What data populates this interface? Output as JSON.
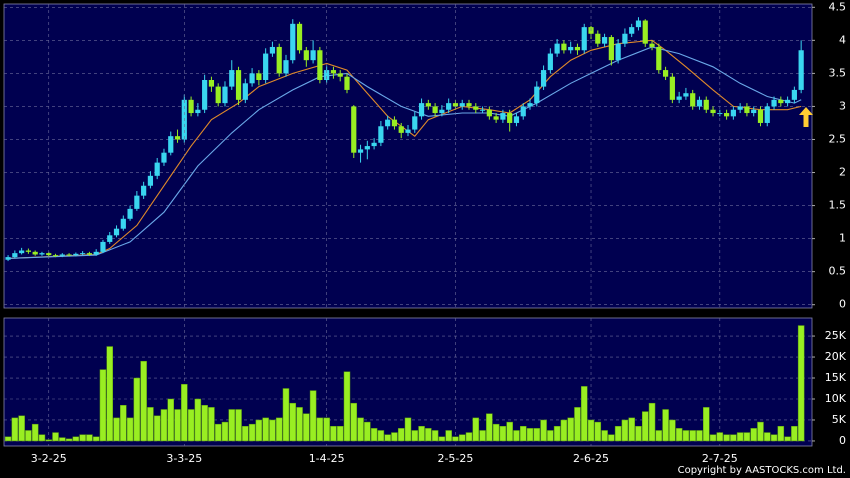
{
  "chart_data": [
    {
      "type": "candlestick",
      "up_color": "#3ad6f0",
      "down_color": "#99ee22",
      "background": "#000050",
      "xlim": [
        -0.6,
        118.6
      ],
      "ylim": [
        -0.05,
        4.55
      ],
      "yticks": [
        0,
        0.5,
        1,
        1.5,
        2,
        2.5,
        3,
        3.5,
        4,
        4.5
      ],
      "grid": true,
      "open": [
        0.68,
        0.72,
        0.78,
        0.82,
        0.8,
        0.76,
        0.78,
        0.75,
        0.74,
        0.76,
        0.75,
        0.77,
        0.78,
        0.76,
        0.8,
        0.95,
        1.05,
        1.15,
        1.3,
        1.45,
        1.65,
        1.8,
        1.95,
        2.15,
        2.3,
        2.55,
        2.5,
        3.1,
        2.9,
        2.95,
        3.4,
        3.3,
        3.05,
        3.3,
        3.55,
        3.1,
        3.35,
        3.5,
        3.4,
        3.8,
        3.9,
        3.5,
        3.7,
        4.25,
        3.85,
        3.7,
        3.85,
        3.4,
        3.55,
        3.5,
        3.45,
        3.0,
        2.3,
        2.35,
        2.4,
        2.45,
        2.7,
        2.8,
        2.7,
        2.6,
        2.65,
        2.85,
        3.05,
        3.0,
        2.9,
        2.95,
        3.05,
        3.0,
        3.05,
        3.0,
        2.95,
        2.95,
        2.85,
        2.8,
        2.9,
        2.75,
        2.85,
        3.0,
        3.05,
        3.3,
        3.55,
        3.8,
        3.95,
        3.85,
        3.9,
        3.85,
        4.2,
        4.1,
        3.95,
        4.05,
        3.7,
        3.95,
        4.1,
        4.2,
        4.3,
        3.95,
        3.9,
        3.55,
        3.45,
        3.1,
        3.15,
        3.2,
        3.0,
        3.1,
        2.95,
        2.9,
        2.9,
        2.85,
        2.95,
        3.0,
        2.9,
        2.95,
        2.75,
        3.0,
        3.1,
        3.05,
        3.1,
        3.25
      ],
      "high": [
        0.75,
        0.82,
        0.86,
        0.85,
        0.82,
        0.8,
        0.8,
        0.77,
        0.78,
        0.78,
        0.79,
        0.81,
        0.8,
        0.84,
        0.98,
        1.1,
        1.2,
        1.35,
        1.5,
        1.72,
        1.86,
        2.02,
        2.22,
        2.36,
        2.62,
        2.65,
        3.18,
        3.15,
        3.05,
        3.48,
        3.45,
        3.35,
        3.38,
        3.7,
        3.6,
        3.42,
        3.58,
        3.55,
        3.88,
        3.98,
        3.95,
        3.78,
        4.32,
        4.28,
        3.9,
        4.0,
        3.9,
        3.62,
        3.6,
        3.55,
        3.5,
        3.02,
        2.42,
        2.48,
        2.52,
        2.78,
        2.86,
        2.85,
        2.75,
        2.72,
        2.92,
        3.12,
        3.1,
        3.05,
        3.02,
        3.12,
        3.1,
        3.1,
        3.1,
        3.05,
        3.0,
        3.0,
        2.9,
        2.95,
        2.95,
        2.9,
        3.05,
        3.12,
        3.38,
        3.62,
        3.88,
        4.02,
        4.0,
        3.98,
        3.95,
        4.25,
        4.22,
        4.15,
        4.1,
        4.08,
        4.02,
        4.18,
        4.25,
        4.35,
        4.32,
        4.0,
        3.95,
        3.6,
        3.5,
        3.22,
        3.28,
        3.25,
        3.15,
        3.15,
        3.0,
        2.95,
        2.95,
        3.0,
        3.05,
        3.05,
        3.0,
        3.0,
        3.05,
        3.15,
        3.15,
        3.15,
        3.3,
        4.0
      ],
      "low": [
        0.66,
        0.7,
        0.76,
        0.77,
        0.74,
        0.74,
        0.73,
        0.72,
        0.72,
        0.73,
        0.73,
        0.75,
        0.74,
        0.74,
        0.78,
        0.92,
        1.02,
        1.12,
        1.27,
        1.42,
        1.6,
        1.76,
        1.9,
        2.1,
        2.26,
        2.45,
        2.45,
        2.85,
        2.85,
        2.9,
        3.22,
        3.0,
        3.0,
        3.25,
        3.02,
        3.05,
        3.3,
        3.32,
        3.35,
        3.75,
        3.45,
        3.45,
        3.65,
        3.8,
        3.6,
        3.65,
        3.35,
        3.35,
        3.42,
        3.38,
        3.2,
        2.22,
        2.15,
        2.2,
        2.35,
        2.4,
        2.65,
        2.65,
        2.52,
        2.55,
        2.6,
        2.8,
        2.95,
        2.85,
        2.85,
        2.9,
        2.95,
        2.95,
        2.95,
        2.9,
        2.9,
        2.8,
        2.75,
        2.75,
        2.62,
        2.7,
        2.8,
        2.95,
        3.0,
        3.25,
        3.5,
        3.75,
        3.8,
        3.8,
        3.78,
        3.8,
        4.02,
        3.9,
        3.9,
        3.62,
        3.65,
        3.9,
        4.05,
        4.15,
        3.9,
        3.85,
        3.5,
        3.4,
        3.05,
        3.05,
        3.1,
        2.95,
        2.95,
        2.9,
        2.85,
        2.85,
        2.8,
        2.8,
        2.9,
        2.85,
        2.85,
        2.7,
        2.7,
        2.95,
        3.0,
        3.0,
        3.05,
        3.2
      ],
      "close": [
        0.72,
        0.78,
        0.82,
        0.8,
        0.76,
        0.78,
        0.75,
        0.74,
        0.76,
        0.75,
        0.77,
        0.78,
        0.76,
        0.8,
        0.95,
        1.05,
        1.15,
        1.3,
        1.45,
        1.65,
        1.8,
        1.95,
        2.15,
        2.3,
        2.55,
        2.5,
        3.1,
        2.9,
        2.95,
        3.4,
        3.3,
        3.05,
        3.3,
        3.55,
        3.1,
        3.35,
        3.5,
        3.4,
        3.8,
        3.9,
        3.5,
        3.7,
        4.25,
        3.85,
        3.7,
        3.85,
        3.4,
        3.55,
        3.5,
        3.45,
        3.25,
        2.3,
        2.35,
        2.4,
        2.45,
        2.7,
        2.8,
        2.7,
        2.6,
        2.65,
        2.85,
        3.05,
        3.0,
        2.9,
        2.95,
        3.05,
        3.0,
        3.05,
        3.0,
        2.95,
        2.95,
        2.85,
        2.8,
        2.9,
        2.75,
        2.85,
        3.0,
        3.05,
        3.3,
        3.55,
        3.8,
        3.95,
        3.85,
        3.9,
        3.85,
        4.2,
        4.1,
        3.95,
        4.05,
        3.7,
        3.95,
        4.1,
        4.2,
        4.3,
        3.95,
        3.9,
        3.55,
        3.45,
        3.1,
        3.15,
        3.2,
        3.0,
        3.1,
        2.95,
        2.9,
        2.9,
        2.85,
        2.95,
        3.0,
        2.9,
        2.95,
        2.75,
        3.0,
        3.1,
        3.05,
        3.1,
        3.25,
        3.85
      ],
      "lines": [
        {
          "color": "#e08a2a",
          "x": [
            0,
            13,
            15,
            19,
            23,
            27,
            30,
            34,
            37,
            42,
            47,
            50,
            53,
            56,
            60,
            62,
            67,
            71,
            74,
            77,
            80,
            83,
            86,
            90,
            95,
            97,
            100,
            104,
            107,
            111,
            115,
            117
          ],
          "values": [
            0.7,
            0.76,
            0.85,
            1.2,
            1.8,
            2.4,
            2.8,
            3.05,
            3.3,
            3.5,
            3.65,
            3.55,
            3.2,
            2.85,
            2.55,
            2.8,
            3.0,
            2.95,
            2.9,
            3.1,
            3.45,
            3.7,
            3.85,
            3.95,
            4.0,
            3.85,
            3.6,
            3.25,
            3.0,
            2.95,
            2.95,
            3.0
          ]
        },
        {
          "color": "#6aa8e8",
          "x": [
            0,
            13,
            18,
            23,
            28,
            33,
            37,
            42,
            46,
            50,
            53,
            58,
            62,
            67,
            71,
            74,
            78,
            83,
            86,
            90,
            95,
            99,
            104,
            108,
            112,
            116,
            117
          ],
          "values": [
            0.7,
            0.75,
            0.95,
            1.4,
            2.1,
            2.6,
            2.95,
            3.25,
            3.45,
            3.5,
            3.3,
            3.0,
            2.85,
            2.9,
            2.9,
            2.85,
            3.05,
            3.35,
            3.5,
            3.7,
            3.9,
            3.8,
            3.6,
            3.35,
            3.15,
            3.05,
            3.1
          ]
        }
      ]
    },
    {
      "type": "bar",
      "color": "#99ee22",
      "background": "#000050",
      "xlim": [
        -0.6,
        118.6
      ],
      "ylim": [
        -1200,
        29300
      ],
      "grid": true,
      "yticks": [
        0,
        {
          "value": 5000,
          "label": "5K"
        },
        {
          "value": 10000,
          "label": "10K"
        },
        {
          "value": 15000,
          "label": "15K"
        },
        {
          "value": 20000,
          "label": "20K"
        },
        {
          "value": 25000,
          "label": "25K"
        }
      ],
      "xticks": [
        {
          "value": 6,
          "label": "3-2-25"
        },
        {
          "value": 26,
          "label": "3-3-25"
        },
        {
          "value": 47,
          "label": "1-4-25"
        },
        {
          "value": 66,
          "label": "2-5-25"
        },
        {
          "value": 86,
          "label": "2-6-25"
        },
        {
          "value": 105,
          "label": "2-7-25"
        }
      ],
      "values": [
        1000,
        5500,
        6000,
        2500,
        4000,
        1500,
        300,
        2000,
        800,
        500,
        1000,
        1500,
        1500,
        1000,
        17000,
        22500,
        5500,
        8500,
        5500,
        15000,
        19000,
        8000,
        6000,
        7500,
        10000,
        7500,
        13500,
        7500,
        10000,
        8500,
        8000,
        4000,
        4500,
        7500,
        7500,
        3500,
        4000,
        5000,
        5500,
        5000,
        5500,
        12500,
        9000,
        8000,
        6500,
        12000,
        5500,
        5500,
        3500,
        3500,
        16500,
        9000,
        5500,
        4500,
        3000,
        2500,
        1500,
        2000,
        3000,
        5500,
        2500,
        3500,
        3000,
        2500,
        1000,
        2500,
        1000,
        1500,
        2000,
        5500,
        2500,
        6500,
        4000,
        3500,
        4500,
        2500,
        3500,
        3000,
        3000,
        5000,
        2500,
        3500,
        5000,
        5500,
        8000,
        13000,
        5000,
        4500,
        2500,
        1500,
        3500,
        5000,
        5500,
        3500,
        7000,
        9000,
        2500,
        7500,
        5000,
        3000,
        2500,
        2500,
        2500,
        8000,
        1500,
        2000,
        1500,
        1500,
        2000,
        2000,
        3000,
        4500,
        2000,
        1500,
        3500,
        1000,
        3500,
        27500
      ]
    }
  ],
  "footer": "Copyright by AASTOCKS.com Ltd."
}
